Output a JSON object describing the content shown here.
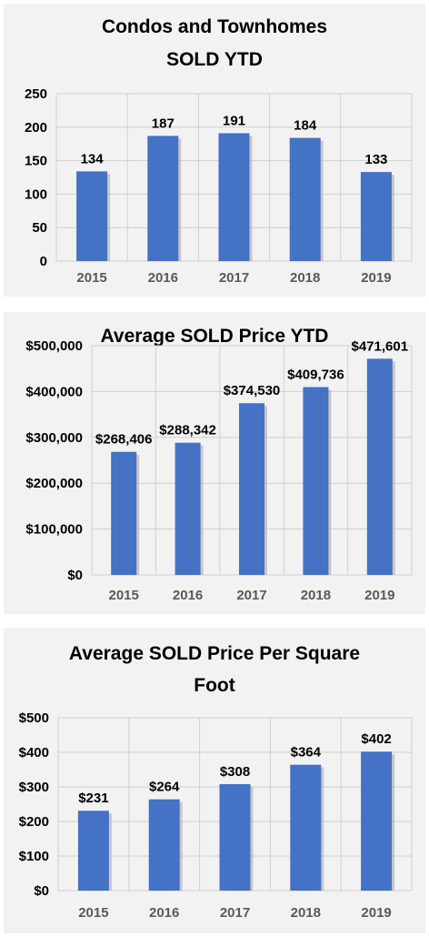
{
  "chart_data": [
    {
      "type": "bar",
      "title_lines": [
        "Condos and Townhomes",
        "SOLD YTD"
      ],
      "categories": [
        "2015",
        "2016",
        "2017",
        "2018",
        "2019"
      ],
      "values": [
        134,
        187,
        191,
        184,
        133
      ],
      "value_labels": [
        "134",
        "187",
        "191",
        "184",
        "133"
      ],
      "y_ticks": [
        "0",
        "50",
        "100",
        "150",
        "200",
        "250"
      ],
      "ylim": [
        0,
        250
      ],
      "grid": true,
      "bar_color": "#4472c4"
    },
    {
      "type": "bar",
      "title_lines": [
        "Average SOLD Price YTD"
      ],
      "categories": [
        "2015",
        "2016",
        "2017",
        "2018",
        "2019"
      ],
      "values": [
        268406,
        288342,
        374530,
        409736,
        471601
      ],
      "value_labels": [
        "$268,406",
        "$288,342",
        "$374,530",
        "$409,736",
        "$471,601"
      ],
      "y_ticks": [
        "$0",
        "$100,000",
        "$200,000",
        "$300,000",
        "$400,000",
        "$500,000"
      ],
      "ylim": [
        0,
        500000
      ],
      "grid": true,
      "bar_color": "#4472c4"
    },
    {
      "type": "bar",
      "title_lines": [
        "Average SOLD Price Per Square",
        "Foot"
      ],
      "categories": [
        "2015",
        "2016",
        "2017",
        "2018",
        "2019"
      ],
      "values": [
        231,
        264,
        308,
        364,
        402
      ],
      "value_labels": [
        "$231",
        "$264",
        "$308",
        "$364",
        "$402"
      ],
      "y_ticks": [
        "$0",
        "$100",
        "$200",
        "$300",
        "$400",
        "$500"
      ],
      "ylim": [
        0,
        500
      ],
      "grid": true,
      "bar_color": "#4472c4"
    }
  ]
}
